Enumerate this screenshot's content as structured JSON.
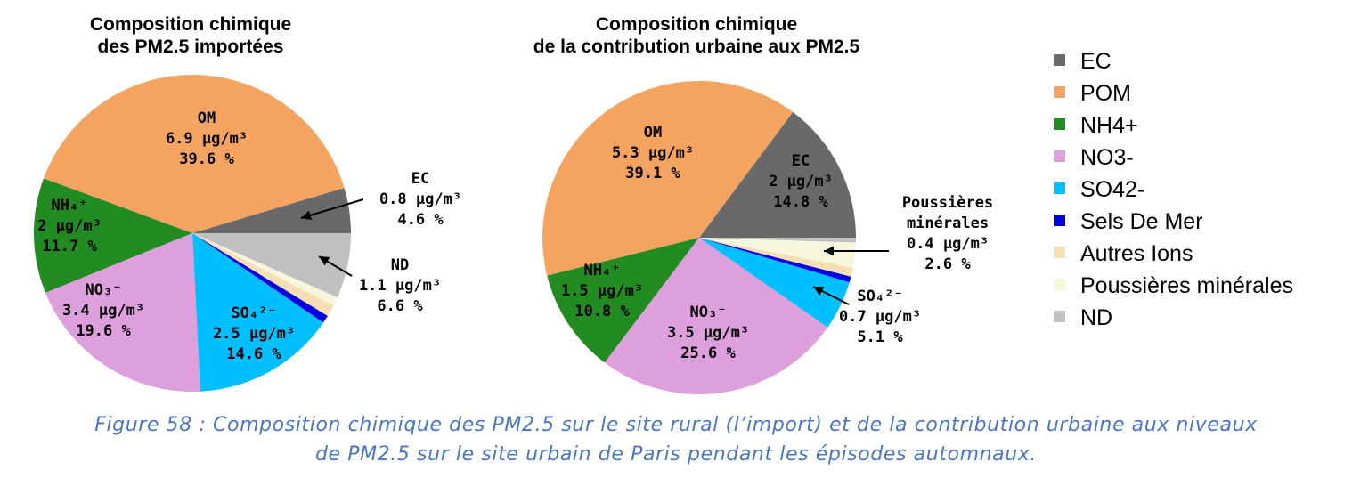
{
  "chart_data": [
    {
      "type": "pie",
      "title": [
        "Composition chimique",
        "des PM2.5 importées"
      ],
      "slices": [
        {
          "category": "EC",
          "value": 4.6,
          "label": [
            "EC",
            "0.8 µg/m³",
            "4.6 %"
          ]
        },
        {
          "category": "POM",
          "value": 39.6,
          "label": [
            "OM",
            "6.9 µg/m³",
            "39.6 %"
          ]
        },
        {
          "category": "NH4+",
          "value": 11.7,
          "label": [
            "NH₄⁺",
            "2 µg/m³",
            "11.7 %"
          ]
        },
        {
          "category": "NO3-",
          "value": 19.6,
          "label": [
            "NO₃⁻",
            "3.4 µg/m³",
            "19.6 %"
          ]
        },
        {
          "category": "SO42-",
          "value": 14.6,
          "label": [
            "SO₄²⁻",
            "2.5 µg/m³",
            "14.6 %"
          ]
        },
        {
          "category": "Sels De Mer",
          "value": 0.8
        },
        {
          "category": "Autres Ions",
          "value": 1.2
        },
        {
          "category": "Poussières minérales",
          "value": 0.9
        },
        {
          "category": "ND",
          "value": 6.6,
          "label": [
            "ND",
            "1.1 µg/m³",
            "6.6 %"
          ]
        }
      ]
    },
    {
      "type": "pie",
      "title": [
        "Composition chimique",
        "de la contribution urbaine aux PM2.5"
      ],
      "slices": [
        {
          "category": "EC",
          "value": 14.8,
          "label": [
            "EC",
            "2 µg/m³",
            "14.8 %"
          ]
        },
        {
          "category": "POM",
          "value": 39.1,
          "label": [
            "OM",
            "5.3 µg/m³",
            "39.1 %"
          ]
        },
        {
          "category": "NH4+",
          "value": 10.8,
          "label": [
            "NH₄⁺",
            "1.5 µg/m³",
            "10.8 %"
          ]
        },
        {
          "category": "NO3-",
          "value": 25.6,
          "label": [
            "NO₃⁻",
            "3.5 µg/m³",
            "25.6 %"
          ]
        },
        {
          "category": "SO42-",
          "value": 5.1,
          "label": [
            "SO₄²⁻",
            "0.7 µg/m³",
            "5.1 %"
          ]
        },
        {
          "category": "Sels De Mer",
          "value": 0.6
        },
        {
          "category": "Autres Ions",
          "value": 0.9
        },
        {
          "category": "Poussières minérales",
          "value": 2.6,
          "label": [
            "Poussières",
            "minérales",
            "0.4 µg/m³",
            "2.6 %"
          ]
        },
        {
          "category": "ND",
          "value": 0.5
        }
      ]
    }
  ],
  "legend": [
    {
      "label": "EC",
      "color": "#696969"
    },
    {
      "label": "POM",
      "color": "#f4a460"
    },
    {
      "label": "NH4+",
      "color": "#228b22"
    },
    {
      "label": "NO3-",
      "color": "#dda0dd"
    },
    {
      "label": "SO42-",
      "color": "#00bfff"
    },
    {
      "label": "Sels De Mer",
      "color": "#0000e0"
    },
    {
      "label": "Autres Ions",
      "color": "#f5deb3"
    },
    {
      "label": "Poussières minérales",
      "color": "#f6f6dc"
    },
    {
      "label": "ND",
      "color": "#c0c0c0"
    }
  ],
  "caption": [
    "Figure 58 : Composition chimique des PM2.5 sur le site rural (l’import) et de la contribution urbaine aux niveaux",
    "de PM2.5 sur le site urbain de Paris pendant les épisodes automnaux."
  ]
}
